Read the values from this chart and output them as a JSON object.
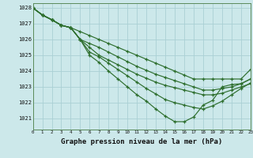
{
  "bg_color": "#cce8ea",
  "grid_color": "#aad0d4",
  "line_color": "#2d6e2d",
  "xlabel": "Graphe pression niveau de la mer (hPa)",
  "ylim": [
    1020.3,
    1028.3
  ],
  "xlim": [
    0,
    23
  ],
  "yticks": [
    1021,
    1022,
    1023,
    1024,
    1025,
    1026,
    1027,
    1028
  ],
  "xticks": [
    0,
    1,
    2,
    3,
    4,
    5,
    6,
    7,
    8,
    9,
    10,
    11,
    12,
    13,
    14,
    15,
    16,
    17,
    18,
    19,
    20,
    21,
    22,
    23
  ],
  "series": [
    [
      1028.0,
      1027.55,
      1027.25,
      1026.9,
      1026.75,
      1026.5,
      1026.25,
      1026.0,
      1025.75,
      1025.5,
      1025.25,
      1025.0,
      1024.75,
      1024.5,
      1024.25,
      1024.0,
      1023.75,
      1023.5,
      1023.5,
      1023.5,
      1023.5,
      1023.5,
      1023.5,
      1024.1
    ],
    [
      1028.0,
      1027.55,
      1027.25,
      1026.9,
      1026.75,
      1026.0,
      1025.75,
      1025.5,
      1025.2,
      1024.9,
      1024.6,
      1024.3,
      1024.05,
      1023.8,
      1023.6,
      1023.4,
      1023.2,
      1023.0,
      1022.8,
      1022.8,
      1022.9,
      1023.0,
      1023.2,
      1023.5
    ],
    [
      1028.0,
      1027.55,
      1027.25,
      1026.9,
      1026.75,
      1026.0,
      1025.5,
      1025.0,
      1024.7,
      1024.4,
      1024.1,
      1023.8,
      1023.55,
      1023.3,
      1023.1,
      1022.95,
      1022.8,
      1022.65,
      1022.5,
      1022.5,
      1022.6,
      1022.8,
      1023.0,
      1023.2
    ],
    [
      1028.0,
      1027.55,
      1027.25,
      1026.9,
      1026.75,
      1026.0,
      1025.2,
      1024.9,
      1024.5,
      1024.1,
      1023.7,
      1023.3,
      1022.9,
      1022.55,
      1022.2,
      1022.0,
      1021.85,
      1021.7,
      1021.6,
      1021.8,
      1022.1,
      1022.5,
      1022.9,
      1023.25
    ],
    [
      1028.0,
      1027.55,
      1027.25,
      1026.9,
      1026.75,
      1026.0,
      1025.0,
      1024.55,
      1024.0,
      1023.5,
      1023.0,
      1022.5,
      1022.1,
      1021.6,
      1021.15,
      1020.8,
      1020.8,
      1021.1,
      1021.85,
      1022.15,
      1023.0,
      1023.15,
      1023.2,
      1023.5
    ]
  ]
}
